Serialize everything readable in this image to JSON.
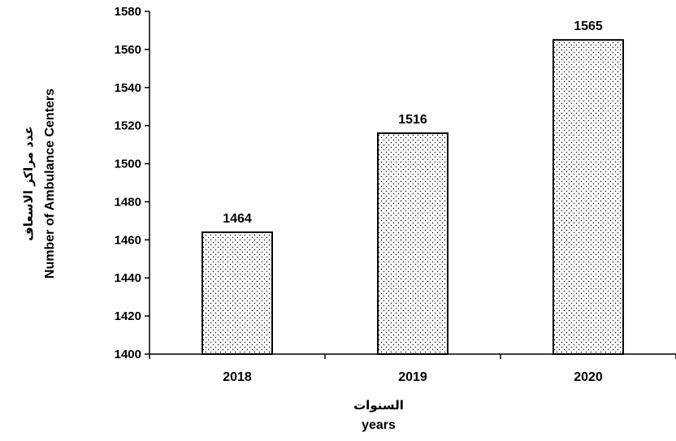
{
  "chart_data": {
    "type": "bar",
    "categories": [
      "2018",
      "2019",
      "2020"
    ],
    "values": [
      1464,
      1516,
      1565
    ],
    "data_labels": [
      "1464",
      "1516",
      "1565"
    ],
    "ylim": [
      1400,
      1580
    ],
    "yticks": [
      "1400",
      "1420",
      "1440",
      "1460",
      "1480",
      "1500",
      "1520",
      "1540",
      "1560",
      "1580"
    ],
    "ylabel_ar": "عدد مراكز الاسعاف",
    "ylabel": "Number of Ambulance Centers",
    "xlabel_ar": "السنوات",
    "xlabel": "years",
    "bar_fill": "dotted",
    "colors": {
      "bar_fill": "#ffffff",
      "bar_dots": "#000000",
      "axis": "#000000"
    },
    "grid": false,
    "legend": false
  }
}
